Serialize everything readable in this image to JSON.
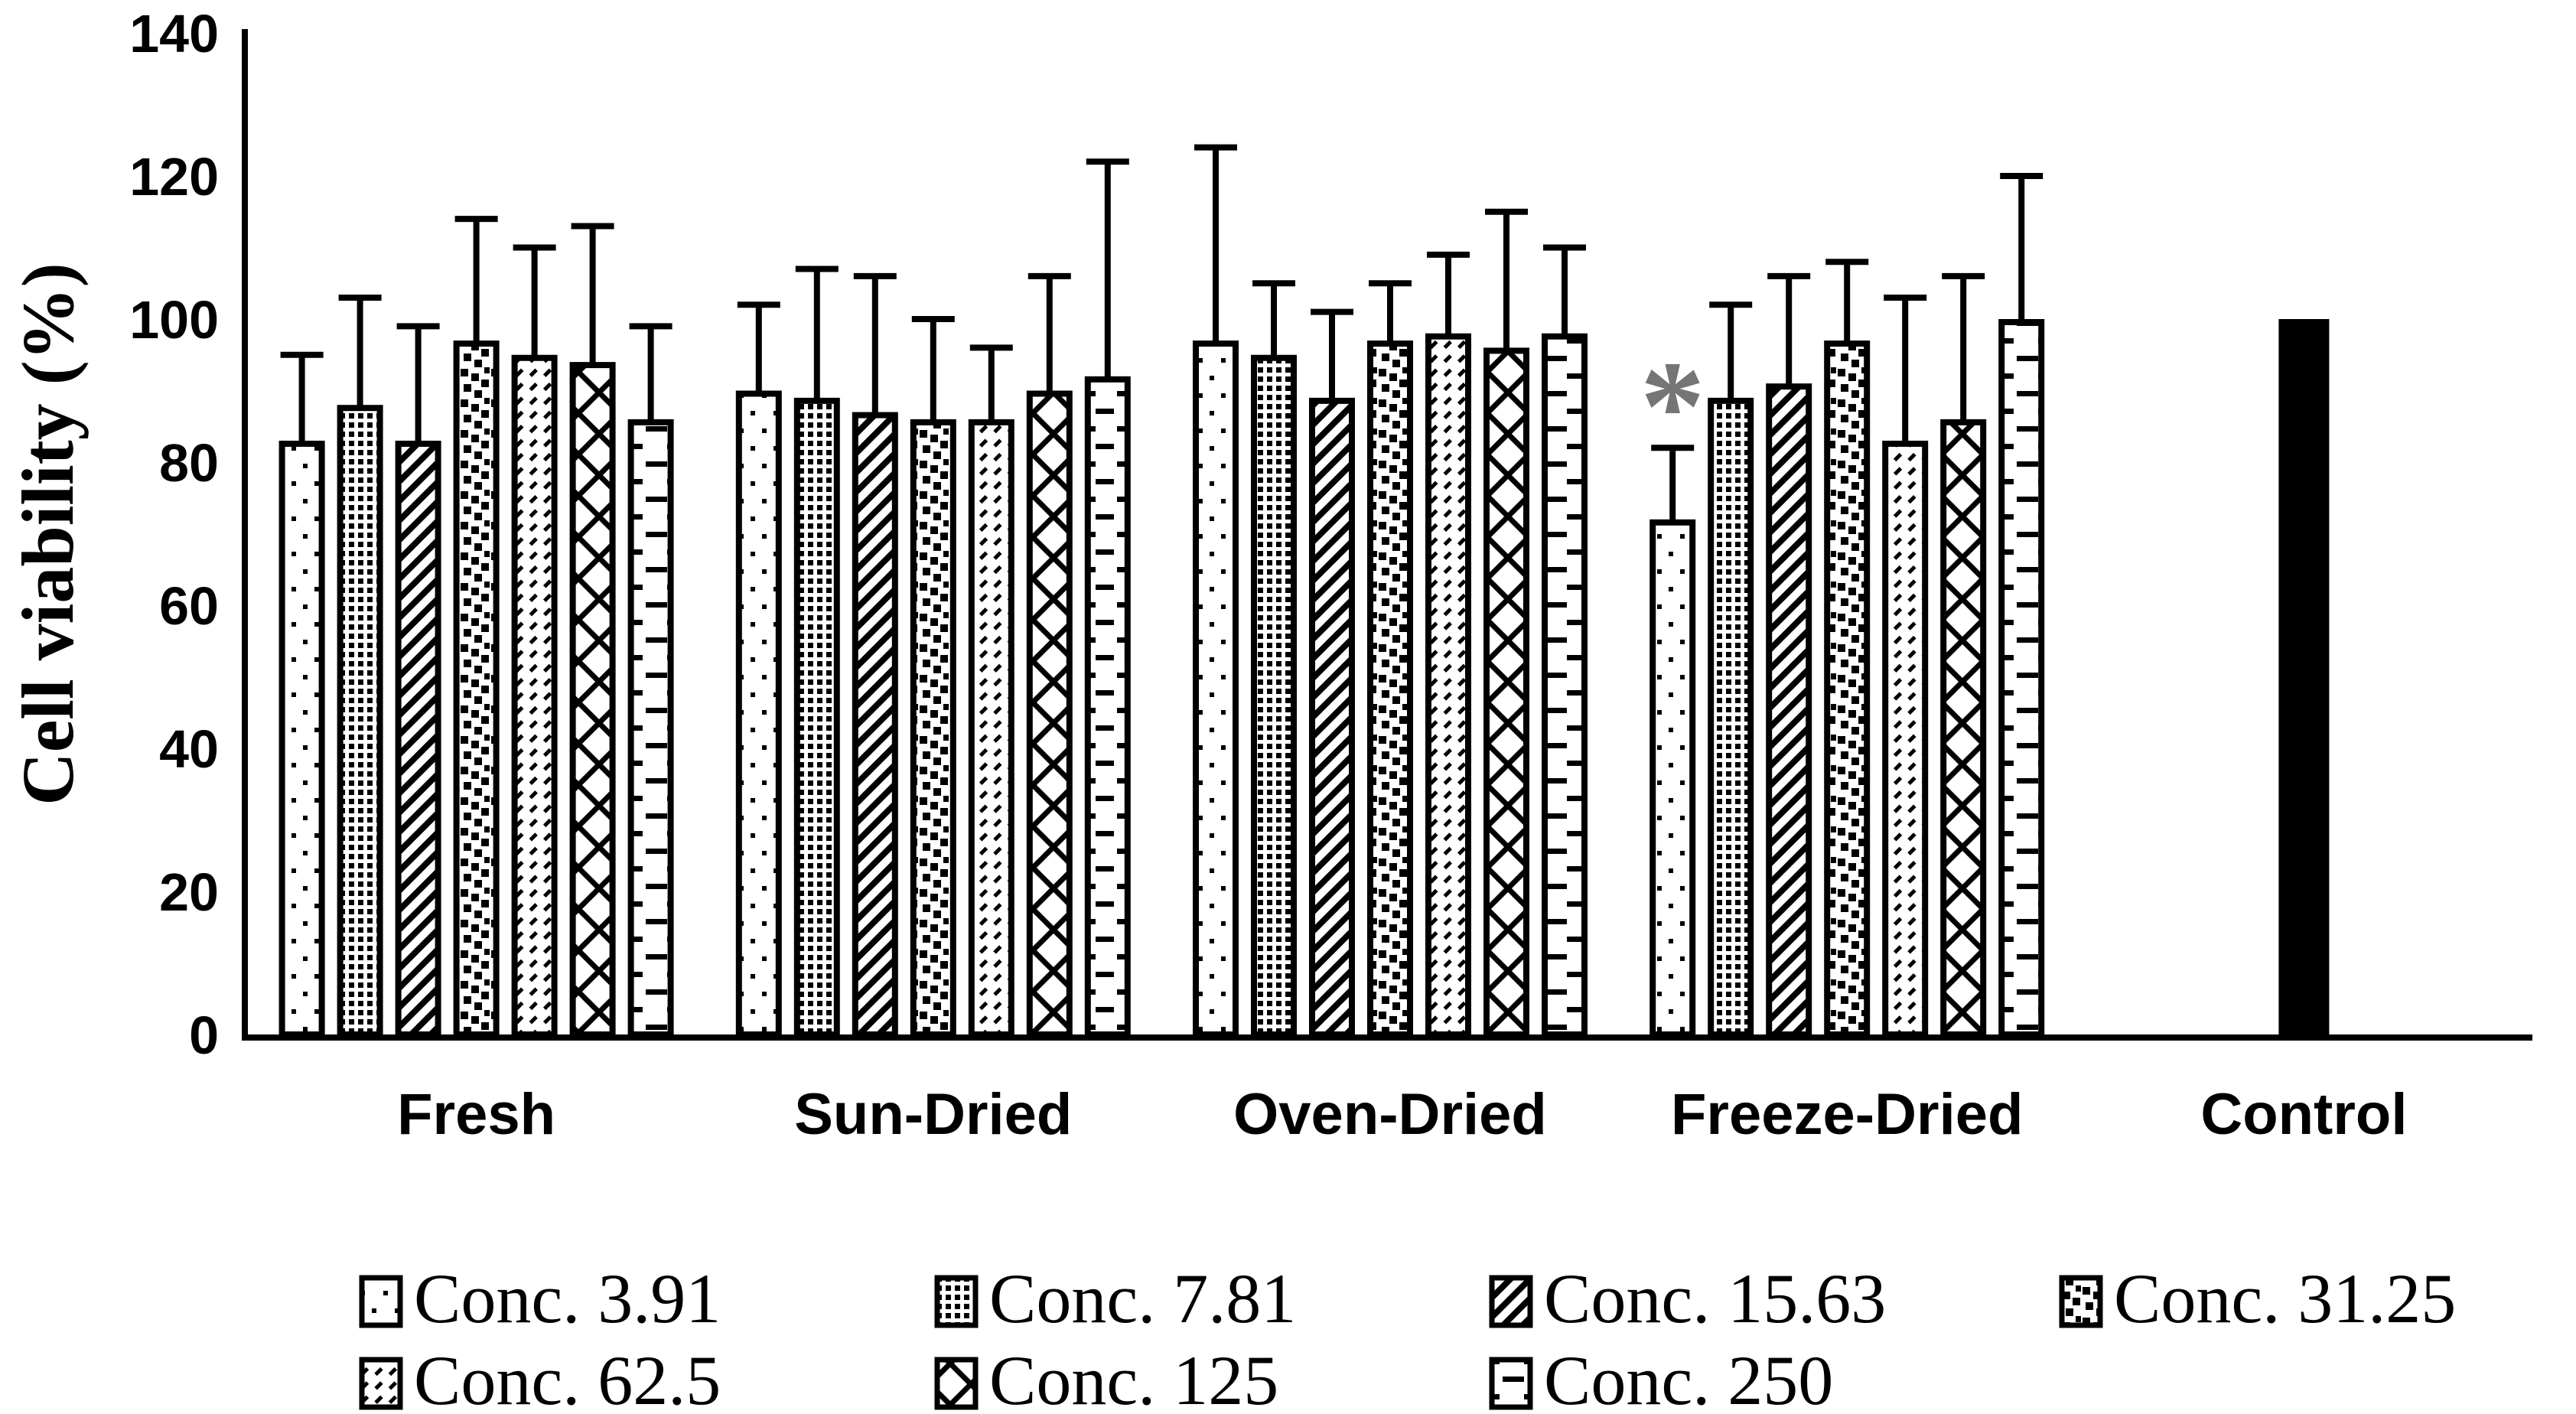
{
  "chart_data": {
    "type": "bar",
    "title": "",
    "xlabel": "",
    "ylabel": "Cell viability (%)",
    "ylim": [
      0,
      140
    ],
    "yticks": [
      0,
      20,
      40,
      60,
      80,
      100,
      120,
      140
    ],
    "grid": false,
    "legend_position": "bottom",
    "categories": [
      "Fresh",
      "Sun-Dried",
      "Oven-Dried",
      "Freeze-Dried",
      "Control"
    ],
    "series": [
      {
        "name": "Conc. 3.91",
        "pattern": "dots-sparse",
        "values": [
          83,
          90,
          97,
          72
        ],
        "errors": [
          12,
          12,
          27,
          10
        ]
      },
      {
        "name": "Conc. 7.81",
        "pattern": "dots-dense",
        "values": [
          88,
          89,
          95,
          89
        ],
        "errors": [
          15,
          18,
          10,
          13
        ]
      },
      {
        "name": "Conc. 15.63",
        "pattern": "diag-stripes",
        "values": [
          83,
          87,
          89,
          91
        ],
        "errors": [
          16,
          19,
          12,
          15
        ]
      },
      {
        "name": "Conc. 31.25",
        "pattern": "speckle",
        "values": [
          97,
          86,
          97,
          97
        ],
        "errors": [
          17,
          14,
          8,
          11
        ]
      },
      {
        "name": "Conc. 62.5",
        "pattern": "diag-dashes",
        "values": [
          95,
          86,
          98,
          83
        ],
        "errors": [
          15,
          10,
          11,
          20
        ]
      },
      {
        "name": "Conc. 125",
        "pattern": "diamond-mesh",
        "values": [
          94,
          90,
          96,
          86
        ],
        "errors": [
          19,
          16,
          19,
          20
        ]
      },
      {
        "name": "Conc. 250",
        "pattern": "horiz-dashes",
        "values": [
          86,
          92,
          98,
          100
        ],
        "errors": [
          13,
          30,
          12,
          20
        ]
      }
    ],
    "control": {
      "label": "Control",
      "value": 100,
      "error": null,
      "color": "#000000"
    },
    "annotations": [
      {
        "text": "*",
        "category": "Freeze-Dried",
        "series": "Conc. 3.91",
        "color": "#757575"
      }
    ]
  },
  "legend": {
    "rows": [
      [
        "Conc. 3.91",
        "Conc. 7.81",
        "Conc. 15.63",
        "Conc. 31.25"
      ],
      [
        "Conc. 62.5",
        "Conc. 125",
        "Conc. 250"
      ]
    ]
  }
}
